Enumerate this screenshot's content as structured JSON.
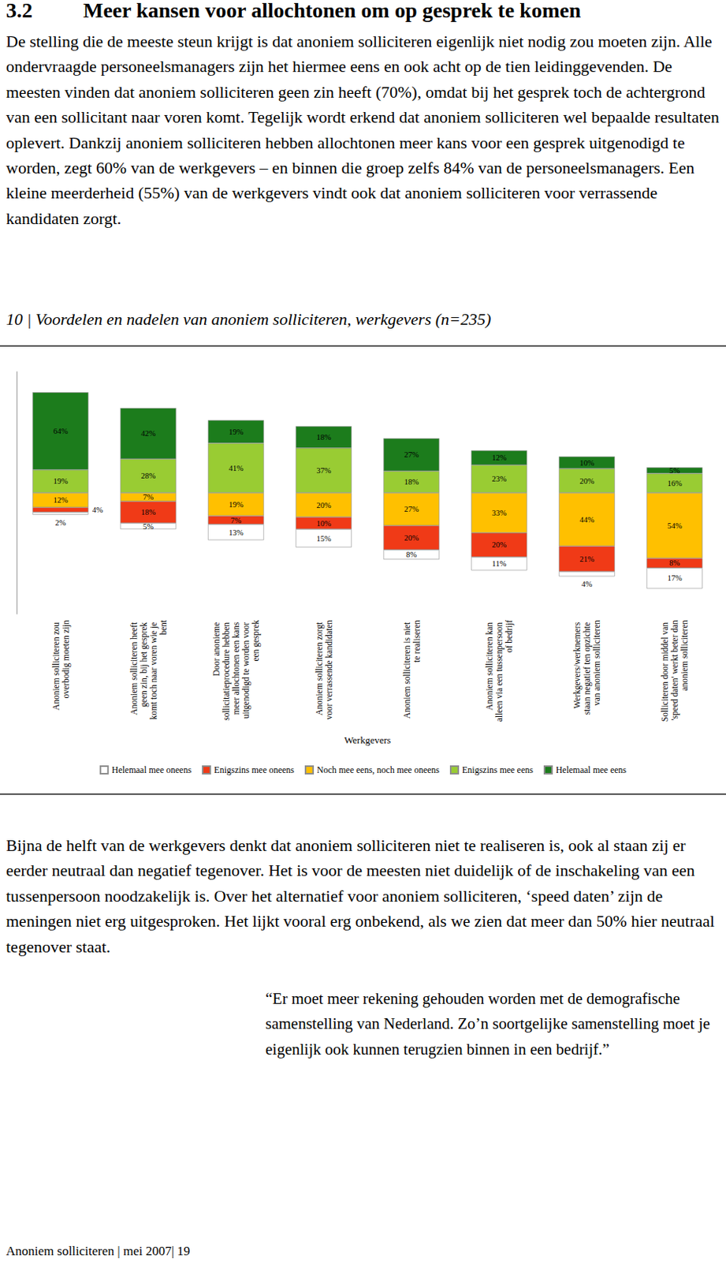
{
  "document": {
    "heading": {
      "number": "3.2",
      "title": "Meer kansen voor allochtonen om op gesprek te komen"
    },
    "intro": "De stelling die de meeste steun krijgt is dat anoniem solliciteren eigenlijk niet nodig zou moeten zijn. Alle ondervraagde personeelsmanagers zijn het hiermee eens en ook acht op de tien leidinggevenden. De meesten vinden dat anoniem solliciteren geen zin heeft (70%), omdat bij het gesprek toch de achtergrond van een sollicitant naar voren komt. Tegelijk wordt erkend dat anoniem solliciteren wel bepaalde resultaten oplevert. Dankzij anoniem solliciteren hebben allochtonen meer kans voor een gesprek uitgenodigd te worden, zegt 60% van de werkgevers – en binnen die groep zelfs 84% van de personeelsmanagers. Een kleine meerderheid (55%) van de werkgevers vindt ook dat anoniem solliciteren voor verrassende kandidaten zorgt.",
    "body": "Bijna de helft van de werkgevers denkt dat anoniem solliciteren niet te realiseren is, ook al staan zij er eerder neutraal dan negatief tegenover. Het is voor de meesten niet duidelijk of de inschakeling van een tussenpersoon noodzakelijk is. Over het alternatief voor anoniem solliciteren, ‘speed daten’ zijn de meningen niet erg uitgesproken. Het lijkt vooral erg onbekend, als we zien dat meer dan 50% hier neutraal tegenover staat.",
    "quote": "“Er moet meer rekening gehouden worden met de demografische samenstelling van Nederland. Zo’n soortgelijke samenstelling moet je eigenlijk ook kunnen terugzien binnen in een bedrijf.”",
    "footer": "Anoniem solliciteren | mei 2007| 19"
  },
  "chart_data": {
    "type": "bar",
    "title": "10 | Voordelen en nadelen van anoniem solliciteren, werkgevers (n=235)",
    "x_label": "Werkgevers",
    "categories": [
      "Anoniem solliciteren zou overbodig moeten zijn",
      "Anoniem solliciteren heeft geen zin, bij het gesprek komt toch naar voren wie je bent",
      "Door anonieme sollicitatieprocedure hebben meer allochtonen een kans uitgenodigd te worden voor een gesprek",
      "Anoniem solliciteren zorgt voor verrassende kandidaten",
      "Anoniem solliciteren is niet te realiseren",
      "Anoniem solliciteren kan alleen via een tussenpersoon of bedrijf",
      "Werkgevers/werknemers staan negatief ten opzichte van anoniem solliciteren",
      "Solliciteren door middel van 'speed daten' werkt beter dan anoniem solliciteren"
    ],
    "series": [
      {
        "name": "Helemaal mee oneens",
        "color": "#ffffff",
        "axis": "y2",
        "values": [
          2,
          5,
          13,
          15,
          8,
          11,
          4,
          17
        ],
        "value_labels": [
          "2%",
          "5%",
          "13%",
          "15%",
          "8%",
          "11%",
          "4%",
          "17%"
        ]
      },
      {
        "name": "Enigszins mee oneens",
        "color": "#f03a17",
        "axis": "y2",
        "values": [
          4,
          18,
          7,
          10,
          20,
          20,
          21,
          8
        ],
        "value_labels": [
          "4%",
          "18%",
          "7%",
          "10%",
          "20%",
          "20%",
          "21%",
          "8%"
        ]
      },
      {
        "name": "Noch mee eens, noch mee oneens",
        "color": "#ffc000",
        "axis": "y2",
        "values": [
          12,
          7,
          19,
          20,
          27,
          33,
          44,
          54
        ],
        "value_labels": [
          "12%",
          "7%",
          "19%",
          "20%",
          "27%",
          "33%",
          "44%",
          "54%"
        ]
      },
      {
        "name": "Enigszins mee eens",
        "color": "#99cc33",
        "values": [
          19,
          28,
          41,
          37,
          18,
          23,
          20,
          16
        ],
        "value_labels": [
          "19%",
          "28%",
          "41%",
          "37%",
          "18%",
          "23%",
          "20%",
          "16%"
        ]
      },
      {
        "name": "Helemaal mee eens",
        "color": "#1c7c1c",
        "values": [
          64,
          42,
          19,
          18,
          27,
          12,
          10,
          5
        ],
        "value_labels": [
          "64%",
          "42%",
          "19%",
          "18%",
          "27%",
          "12%",
          "10%",
          "5%"
        ]
      }
    ],
    "ylim": [
      -100,
      100
    ],
    "y2lim": [
      100,
      -100
    ],
    "stacked": true,
    "data_labels": true,
    "legend": "bottom",
    "tick_labels": "x"
  }
}
